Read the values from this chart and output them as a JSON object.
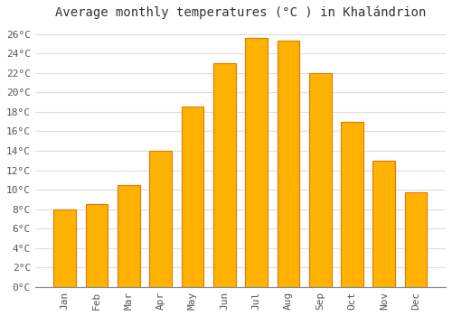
{
  "months": [
    "Jan",
    "Feb",
    "Mar",
    "Apr",
    "May",
    "Jun",
    "Jul",
    "Aug",
    "Sep",
    "Oct",
    "Nov",
    "Dec"
  ],
  "values": [
    8.0,
    8.5,
    10.5,
    14.0,
    18.5,
    23.0,
    25.6,
    25.3,
    22.0,
    17.0,
    13.0,
    9.7
  ],
  "bar_color": "#FFB300",
  "bar_edge_color": "#E07800",
  "title": "Average monthly temperatures (°C ) in Khalándrion",
  "ylim": [
    0,
    27
  ],
  "yticks": [
    0,
    2,
    4,
    6,
    8,
    10,
    12,
    14,
    16,
    18,
    20,
    22,
    24,
    26
  ],
  "ytick_labels": [
    "0°C",
    "2°C",
    "4°C",
    "6°C",
    "8°C",
    "10°C",
    "12°C",
    "14°C",
    "16°C",
    "18°C",
    "20°C",
    "22°C",
    "24°C",
    "26°C"
  ],
  "background_color": "#FFFFFF",
  "grid_color": "#DDDDDD",
  "title_fontsize": 10,
  "tick_fontsize": 8,
  "bar_width": 0.7
}
